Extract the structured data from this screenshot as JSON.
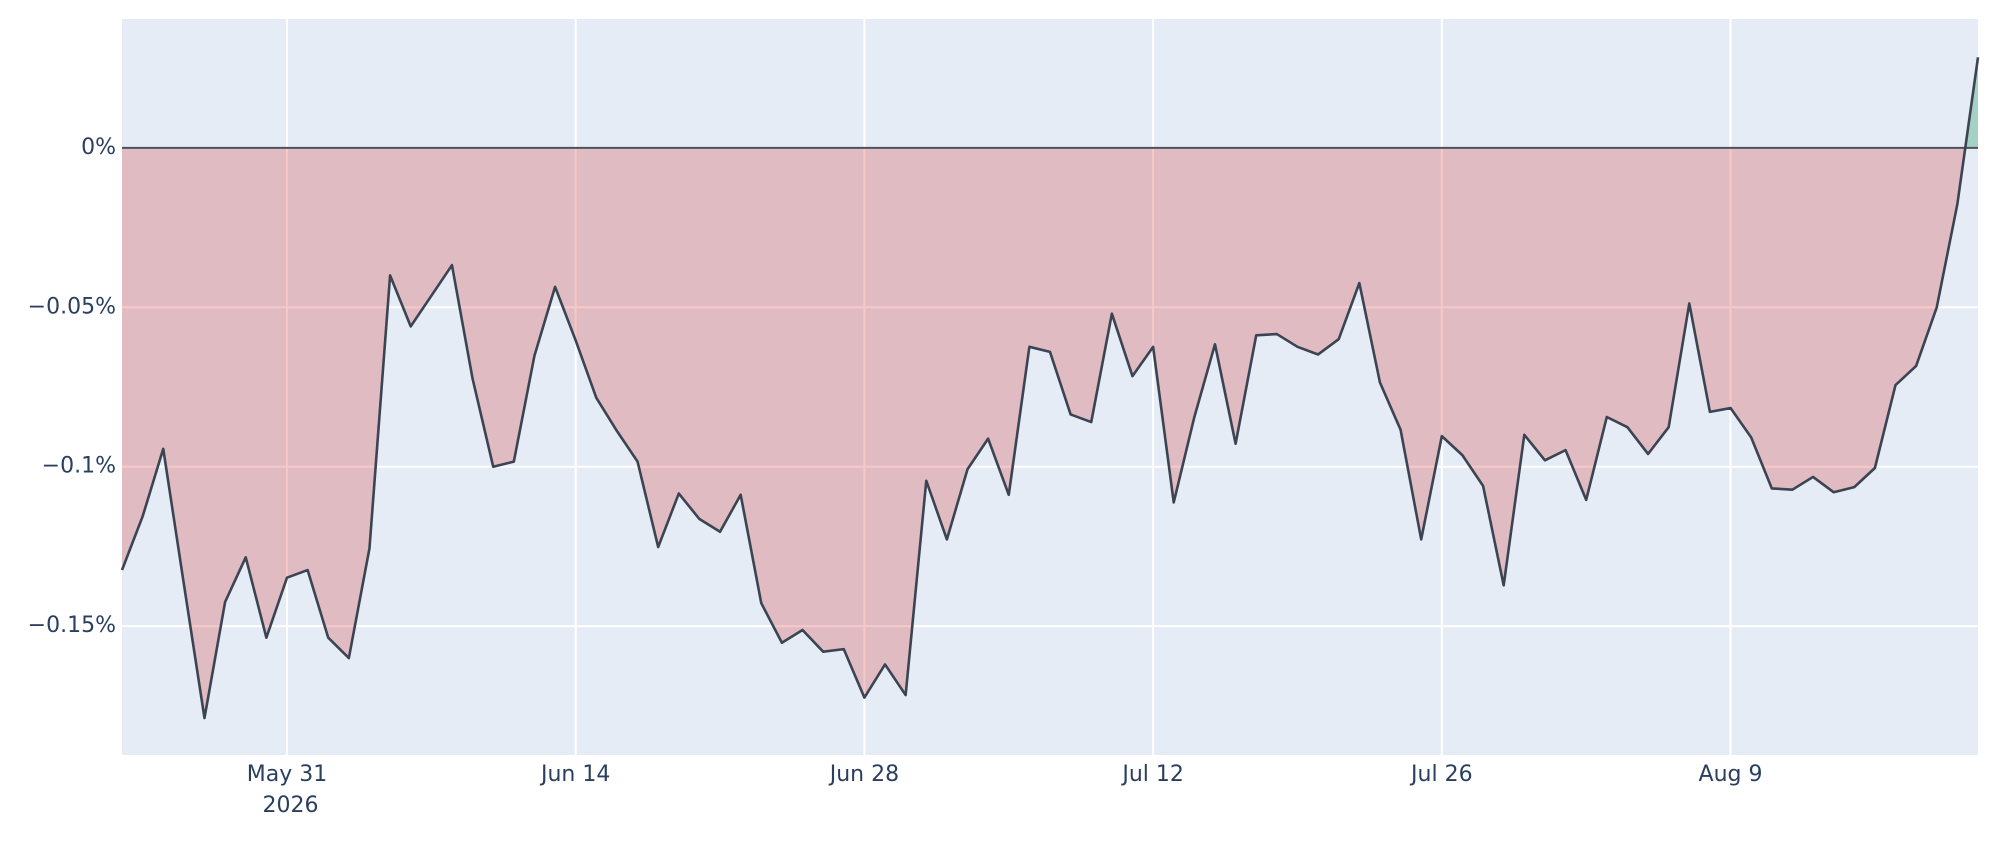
{
  "chart_data": {
    "type": "area_line",
    "x": [
      "2026-05-23",
      "2026-05-24",
      "2026-05-25",
      "2026-05-26",
      "2026-05-27",
      "2026-05-28",
      "2026-05-29",
      "2026-05-30",
      "2026-05-31",
      "2026-06-01",
      "2026-06-02",
      "2026-06-03",
      "2026-06-04",
      "2026-06-05",
      "2026-06-06",
      "2026-06-07",
      "2026-06-08",
      "2026-06-09",
      "2026-06-10",
      "2026-06-11",
      "2026-06-12",
      "2026-06-13",
      "2026-06-14",
      "2026-06-15",
      "2026-06-16",
      "2026-06-17",
      "2026-06-18",
      "2026-06-19",
      "2026-06-20",
      "2026-06-21",
      "2026-06-22",
      "2026-06-23",
      "2026-06-24",
      "2026-06-25",
      "2026-06-26",
      "2026-06-27",
      "2026-06-28",
      "2026-06-29",
      "2026-06-30",
      "2026-07-01",
      "2026-07-02",
      "2026-07-03",
      "2026-07-04",
      "2026-07-05",
      "2026-07-06",
      "2026-07-07",
      "2026-07-08",
      "2026-07-09",
      "2026-07-10",
      "2026-07-11",
      "2026-07-12",
      "2026-07-13",
      "2026-07-14",
      "2026-07-15",
      "2026-07-16",
      "2026-07-17",
      "2026-07-18",
      "2026-07-19",
      "2026-07-20",
      "2026-07-21",
      "2026-07-22",
      "2026-07-23",
      "2026-07-24",
      "2026-07-25",
      "2026-07-26",
      "2026-07-27",
      "2026-07-28",
      "2026-07-29",
      "2026-07-30",
      "2026-07-31",
      "2026-08-01",
      "2026-08-02",
      "2026-08-03",
      "2026-08-04",
      "2026-08-05",
      "2026-08-06",
      "2026-08-07",
      "2026-08-08",
      "2026-08-09",
      "2026-08-10",
      "2026-08-11",
      "2026-08-12",
      "2026-08-13",
      "2026-08-14",
      "2026-08-15",
      "2026-08-16",
      "2026-08-17",
      "2026-08-18",
      "2026-08-19",
      "2026-08-20",
      "2026-08-21"
    ],
    "values": [
      -0.1324,
      -0.1156,
      -0.0944,
      -0.1368,
      -0.1788,
      -0.1424,
      -0.1284,
      -0.1536,
      -0.1348,
      -0.1324,
      -0.1536,
      -0.16,
      -0.1256,
      -0.04,
      -0.056,
      -0.0464,
      -0.0368,
      -0.0724,
      -0.1,
      -0.0984,
      -0.0652,
      -0.0436,
      -0.0604,
      -0.0784,
      -0.0888,
      -0.0984,
      -0.1252,
      -0.1084,
      -0.1164,
      -0.1204,
      -0.1088,
      -0.1428,
      -0.1552,
      -0.1512,
      -0.158,
      -0.1572,
      -0.1724,
      -0.162,
      -0.1716,
      -0.1044,
      -0.1228,
      -0.1008,
      -0.0912,
      -0.1088,
      -0.0624,
      -0.064,
      -0.0836,
      -0.086,
      -0.052,
      -0.0716,
      -0.0624,
      -0.1112,
      -0.0844,
      -0.0616,
      -0.0928,
      -0.0588,
      -0.0584,
      -0.0624,
      -0.0648,
      -0.06,
      -0.0424,
      -0.0736,
      -0.0884,
      -0.1228,
      -0.0904,
      -0.0964,
      -0.106,
      -0.1372,
      -0.09,
      -0.098,
      -0.0948,
      -0.1104,
      -0.0844,
      -0.0876,
      -0.096,
      -0.0876,
      -0.0488,
      -0.0828,
      -0.0816,
      -0.0908,
      -0.1068,
      -0.1072,
      -0.1032,
      -0.108,
      -0.1064,
      -0.1004,
      -0.0744,
      -0.0684,
      -0.05,
      -0.0176,
      0.0284
    ],
    "line_color": "#3b4452",
    "negative_color": "rgba(214,39,40,0.25)",
    "positive_color": "rgba(44,160,101,0.35)",
    "background": "#e5ecf6",
    "xlim": [
      "2026-05-23",
      "2026-08-21"
    ],
    "xticks": [
      {
        "value": "2026-05-31",
        "label": "May 31\n2026"
      },
      {
        "value": "2026-06-14",
        "label": "Jun 14"
      },
      {
        "value": "2026-06-28",
        "label": "Jun 28"
      },
      {
        "value": "2026-07-12",
        "label": "Jul 12"
      },
      {
        "value": "2026-07-26",
        "label": "Jul 26"
      },
      {
        "value": "2026-08-09",
        "label": "Aug 9"
      }
    ],
    "ylim": [
      -0.1904,
      0.0404
    ],
    "yticks": [
      {
        "value": 0,
        "label": "0%"
      },
      {
        "value": -0.05,
        "label": "−0.05%"
      },
      {
        "value": -0.1,
        "label": "−0.1%"
      },
      {
        "value": -0.15,
        "label": "−0.15%"
      }
    ],
    "grid": true
  }
}
